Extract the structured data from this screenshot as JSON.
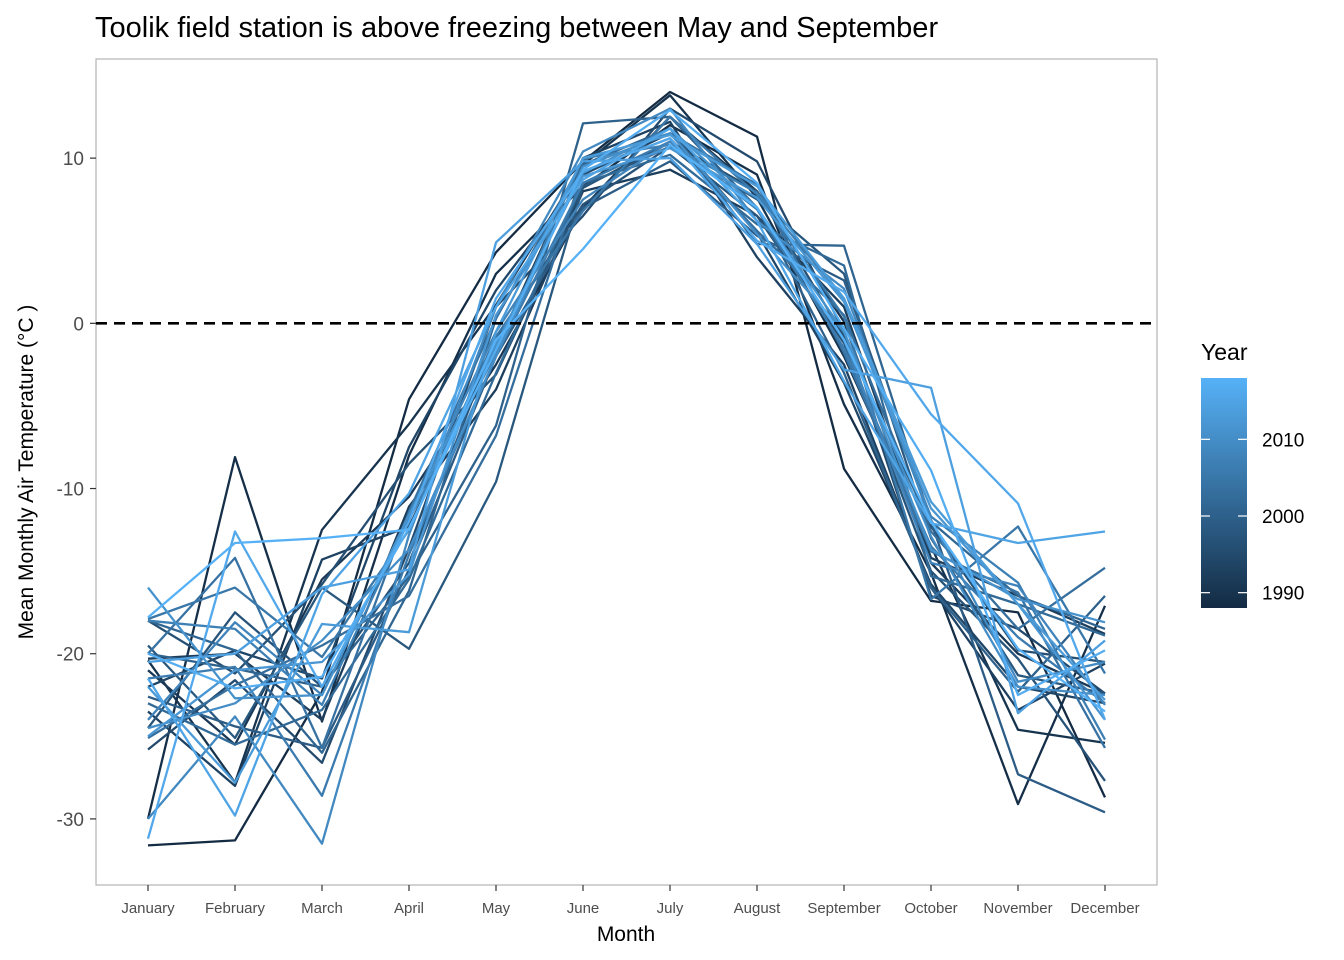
{
  "chart_data": {
    "type": "line",
    "title": "Toolik field station is above freezing between May and September",
    "xlabel": "Month",
    "ylabel": "Mean Monthly Air Temperature (°C )",
    "categories": [
      "January",
      "February",
      "March",
      "April",
      "May",
      "June",
      "July",
      "August",
      "September",
      "October",
      "November",
      "December"
    ],
    "ylim": [
      -34,
      16
    ],
    "yticks": [
      10,
      0,
      -10,
      -20,
      -30
    ],
    "ytick_labels": [
      "10",
      "0",
      "-10",
      "-20",
      "-30"
    ],
    "reference_line": {
      "y": 0,
      "style": "dashed",
      "color": "#000000"
    },
    "grid": false,
    "legend": {
      "title": "Year",
      "placement": "right",
      "type": "colorbar",
      "range": [
        1988,
        2018
      ],
      "ticks": [
        2010,
        2000,
        1990
      ],
      "tick_labels": [
        "2010",
        "2000",
        "1990"
      ],
      "color_low": "#132b43",
      "color_high": "#56b1f7"
    },
    "series": [
      {
        "year": 1988,
        "values": [
          -31.6,
          -31.3,
          -22.3,
          -4.6,
          4.3,
          9.8,
          14.0,
          11.3,
          -8.8,
          -16.8,
          -17.5,
          -28.7
        ]
      },
      {
        "year": 1989,
        "values": [
          -30.0,
          -8.1,
          -24.1,
          -8.0,
          3.0,
          8.3,
          12.0,
          9.0,
          -4.9,
          -15.1,
          -29.1,
          -17.1
        ]
      },
      {
        "year": 1990,
        "values": [
          -20.4,
          -27.8,
          -12.5,
          -6.1,
          1.1,
          9.6,
          13.8,
          7.6,
          -2.0,
          -13.5,
          -24.6,
          -25.4
        ]
      },
      {
        "year": 1991,
        "values": [
          -21.0,
          -25.5,
          -15.5,
          -10.5,
          -2.5,
          7.0,
          12.5,
          8.0,
          0.1,
          -14.5,
          -20.0,
          -22.4
        ]
      },
      {
        "year": 1992,
        "values": [
          -20.3,
          -20.0,
          -24.0,
          -11.1,
          -4.0,
          8.0,
          9.3,
          6.5,
          1.0,
          -14.2,
          -16.5,
          -18.8
        ]
      },
      {
        "year": 1993,
        "values": [
          -23.5,
          -28.0,
          -14.3,
          -12.3,
          -1.5,
          10.0,
          12.2,
          4.0,
          -2.5,
          -16.0,
          -23.4,
          -20.6
        ]
      },
      {
        "year": 1994,
        "values": [
          -22.0,
          -19.8,
          -21.5,
          -7.5,
          2.0,
          9.0,
          11.5,
          5.5,
          -3.6,
          -15.8,
          -22.0,
          -23.0
        ]
      },
      {
        "year": 1995,
        "values": [
          -25.8,
          -21.6,
          -26.6,
          -13.6,
          1.0,
          6.5,
          13.0,
          9.8,
          -0.5,
          -16.5,
          -18.5,
          -22.4
        ]
      },
      {
        "year": 1996,
        "values": [
          -18.0,
          -21.2,
          -15.8,
          -8.5,
          -3.1,
          8.2,
          11.0,
          8.0,
          -0.8,
          -12.3,
          -19.8,
          -20.5
        ]
      },
      {
        "year": 1997,
        "values": [
          -24.5,
          -17.5,
          -22.0,
          -14.5,
          -1.0,
          7.2,
          10.7,
          6.5,
          -1.2,
          -15.0,
          -20.3,
          -27.7
        ]
      },
      {
        "year": 1998,
        "values": [
          -19.5,
          -25.1,
          -16.0,
          -19.7,
          -9.6,
          8.3,
          10.7,
          7.5,
          3.0,
          -13.0,
          -21.3,
          -22.4
        ]
      },
      {
        "year": 1999,
        "values": [
          -22.6,
          -24.4,
          -25.7,
          -14.9,
          -2.0,
          7.0,
          9.8,
          5.3,
          2.6,
          -12.0,
          -27.3,
          -29.6
        ]
      },
      {
        "year": 2000,
        "values": [
          -20.0,
          -20.9,
          -22.0,
          -15.3,
          -6.2,
          12.1,
          12.5,
          7.0,
          -3.0,
          -16.0,
          -22.3,
          -16.5
        ]
      },
      {
        "year": 2001,
        "values": [
          -18.0,
          -19.8,
          -26.0,
          -16.2,
          0.3,
          9.6,
          11.8,
          4.8,
          4.7,
          -12.0,
          -16.5,
          -18.5
        ]
      },
      {
        "year": 2002,
        "values": [
          -23.0,
          -25.5,
          -23.4,
          -15.5,
          -3.0,
          8.5,
          10.2,
          6.0,
          3.5,
          -15.3,
          -17.0,
          -18.9
        ]
      },
      {
        "year": 2003,
        "values": [
          -25.1,
          -21.9,
          -19.5,
          -16.5,
          -6.8,
          9.2,
          11.2,
          5.6,
          0.5,
          -12.6,
          -18.5,
          -14.8
        ]
      },
      {
        "year": 2004,
        "values": [
          -20.0,
          -14.2,
          -25.7,
          -11.4,
          0.3,
          9.9,
          11.5,
          8.4,
          -1.8,
          -13.8,
          -16.3,
          -25.7
        ]
      },
      {
        "year": 2005,
        "values": [
          -17.9,
          -16.0,
          -20.2,
          -12.5,
          -0.8,
          6.8,
          12.5,
          7.8,
          0.4,
          -16.7,
          -12.3,
          -21.2
        ]
      },
      {
        "year": 2006,
        "values": [
          -21.5,
          -20.8,
          -28.6,
          -14.0,
          -2.0,
          8.5,
          11.0,
          6.9,
          -1.5,
          -13.5,
          -19.0,
          -23.0
        ]
      },
      {
        "year": 2007,
        "values": [
          -18.0,
          -18.5,
          -23.1,
          -11.9,
          -1.8,
          10.0,
          10.8,
          7.9,
          1.5,
          -11.7,
          -15.7,
          -25.2
        ]
      },
      {
        "year": 2008,
        "values": [
          -24.0,
          -18.1,
          -22.5,
          -11.6,
          -0.5,
          7.5,
          11.0,
          7.0,
          -1.0,
          -14.5,
          -15.9,
          -23.1
        ]
      },
      {
        "year": 2009,
        "values": [
          -30.0,
          -23.8,
          -31.5,
          -12.8,
          1.0,
          10.4,
          13.0,
          6.2,
          2.1,
          -11.9,
          -21.7,
          -20.5
        ]
      },
      {
        "year": 2010,
        "values": [
          -24.5,
          -23.0,
          -19.2,
          -13.7,
          -2.0,
          9.5,
          11.5,
          5.4,
          -0.5,
          -12.9,
          -22.0,
          -22.5
        ]
      },
      {
        "year": 2011,
        "values": [
          -16.0,
          -22.7,
          -22.5,
          -11.6,
          -1.3,
          9.1,
          11.8,
          7.0,
          -0.5,
          -13.7,
          -16.7,
          -18.1
        ]
      },
      {
        "year": 2012,
        "values": [
          -25.0,
          -21.0,
          -20.5,
          -15.2,
          0.5,
          8.9,
          10.6,
          7.6,
          1.3,
          -11.2,
          -17.0,
          -24.0
        ]
      },
      {
        "year": 2013,
        "values": [
          -22.0,
          -27.8,
          -18.2,
          -18.7,
          -0.5,
          10.0,
          11.4,
          8.3,
          1.5,
          -10.8,
          -17.0,
          -22.8
        ]
      },
      {
        "year": 2014,
        "values": [
          -20.5,
          -20.0,
          -16.0,
          -14.9,
          4.9,
          9.8,
          10.0,
          4.8,
          -2.8,
          -3.9,
          -23.6,
          -19.2
        ]
      },
      {
        "year": 2015,
        "values": [
          -21.5,
          -29.8,
          -16.4,
          -10.3,
          1.0,
          8.7,
          11.8,
          6.2,
          -3.5,
          -12.1,
          -13.3,
          -12.6
        ]
      },
      {
        "year": 2016,
        "values": [
          -31.2,
          -12.6,
          -22.0,
          -12.0,
          1.5,
          9.2,
          11.2,
          5.0,
          1.9,
          -5.5,
          -10.9,
          -24.0
        ]
      },
      {
        "year": 2017,
        "values": [
          -20.0,
          -22.1,
          -21.4,
          -12.4,
          -1.6,
          9.3,
          12.9,
          8.5,
          -0.3,
          -8.9,
          -22.5,
          -19.8
        ]
      },
      {
        "year": 2018,
        "values": [
          -17.8,
          -13.3,
          -13.0,
          -12.5,
          -1.0,
          4.5,
          10.8,
          7.0,
          -1.0,
          -12.0,
          -19.7,
          -23.5
        ]
      }
    ]
  }
}
